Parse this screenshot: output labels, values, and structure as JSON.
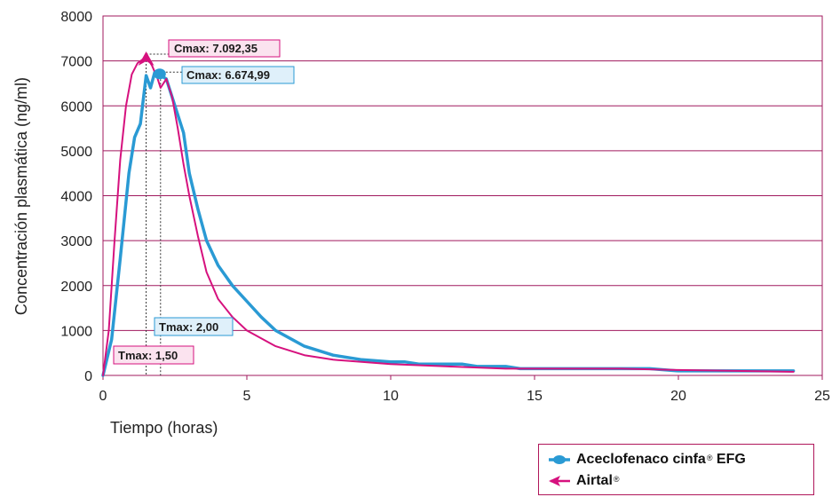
{
  "chart_data": {
    "type": "line",
    "xlabel": "Tiempo (horas)",
    "ylabel": "Concentración plasmática (ng/ml)",
    "xlim": [
      0,
      25
    ],
    "ylim": [
      0,
      8000
    ],
    "x_ticks": [
      "0",
      "5",
      "10",
      "15",
      "20",
      "25"
    ],
    "y_ticks": [
      "0",
      "1000",
      "2000",
      "3000",
      "4000",
      "5000",
      "6000",
      "7000",
      "8000"
    ],
    "grid": "horizontal",
    "colors": {
      "series_aceclofenaco": "#2a9ad4",
      "series_airtal": "#d6117e",
      "frame": "#a0195e"
    },
    "series": [
      {
        "name": "Aceclofenaco cinfa",
        "mark": "®",
        "suffix": "EFG",
        "color": "#2a9ad4",
        "x": [
          0,
          0.3,
          0.6,
          0.9,
          1.1,
          1.3,
          1.5,
          1.65,
          1.8,
          2.0,
          2.2,
          2.5,
          2.8,
          3.0,
          3.3,
          3.6,
          4.0,
          4.5,
          5.0,
          5.5,
          6.0,
          7.0,
          8.0,
          9.0,
          10.0,
          10.5,
          11.0,
          12.0,
          12.5,
          13.0,
          14.0,
          14.5,
          16.0,
          18.0,
          19.0,
          20.0,
          22.0,
          24.0
        ],
        "y": [
          0,
          800,
          2600,
          4500,
          5300,
          5600,
          6674,
          6400,
          6750,
          6675,
          6600,
          6000,
          5400,
          4500,
          3700,
          3000,
          2450,
          2000,
          1650,
          1300,
          1000,
          650,
          450,
          350,
          300,
          300,
          250,
          250,
          250,
          200,
          200,
          150,
          150,
          150,
          150,
          100,
          100,
          100
        ]
      },
      {
        "name": "Airtal",
        "mark": "®",
        "suffix": "",
        "color": "#d6117e",
        "x": [
          0,
          0.2,
          0.4,
          0.6,
          0.8,
          1.0,
          1.2,
          1.5,
          1.7,
          1.9,
          2.0,
          2.2,
          2.4,
          2.6,
          2.8,
          3.0,
          3.3,
          3.6,
          4.0,
          4.5,
          5.0,
          6.0,
          7.0,
          8.0,
          10.0,
          12.0,
          14.0,
          16.0,
          18.0,
          20.0,
          22.0,
          24.0
        ],
        "y": [
          0,
          1000,
          3000,
          4800,
          6000,
          6700,
          6950,
          7092,
          6900,
          6600,
          6400,
          6600,
          6200,
          5500,
          4700,
          4000,
          3100,
          2300,
          1700,
          1300,
          1000,
          650,
          450,
          350,
          250,
          200,
          150,
          150,
          150,
          120,
          100,
          80
        ]
      }
    ],
    "annotations": {
      "cmax_airtal": "Cmax: 7.092,35",
      "cmax_aceclofenaco": "Cmax: 6.674,99",
      "tmax_aceclofenaco": "Tmax: 2,00",
      "tmax_airtal": "Tmax: 1,50"
    },
    "legend_position": "bottom-right"
  }
}
